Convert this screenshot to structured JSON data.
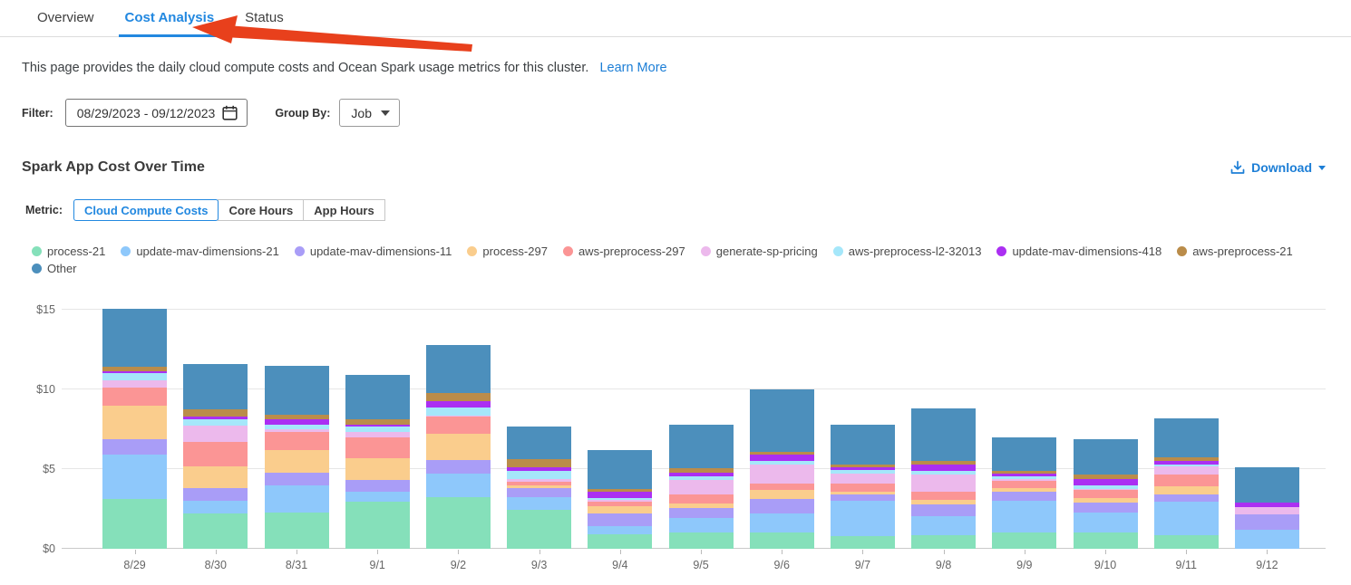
{
  "tabs": [
    {
      "label": "Overview",
      "active": false
    },
    {
      "label": "Cost Analysis",
      "active": true
    },
    {
      "label": "Status",
      "active": false
    }
  ],
  "annotation": {
    "arrow_color": "#E8401C",
    "target": "Cost Analysis tab"
  },
  "description": {
    "text": "This page provides the daily cloud compute costs and Ocean Spark usage metrics for this cluster.",
    "link": "Learn More"
  },
  "filter": {
    "label": "Filter:",
    "date_range": "08/29/2023  -  09/12/2023",
    "group_by_label": "Group By:",
    "group_by_value": "Job"
  },
  "section": {
    "title": "Spark App Cost Over Time",
    "download_label": "Download"
  },
  "metric": {
    "label": "Metric:",
    "options": [
      "Cloud Compute Costs",
      "Core Hours",
      "App Hours"
    ],
    "active": "Cloud Compute Costs"
  },
  "colors": {
    "accent": "#2288E0",
    "link": "#1C7ED6",
    "arrow": "#E8401C"
  },
  "chart_data": {
    "type": "bar",
    "stacked": true,
    "title": "Spark App Cost Over Time",
    "ylabel": "Cloud Compute Costs ($)",
    "ylim": [
      0,
      15
    ],
    "yticks": [
      "$0",
      "$5",
      "$10",
      "$15"
    ],
    "grid": true,
    "legend_position": "top",
    "categories": [
      "8/29",
      "8/30",
      "8/31",
      "9/1",
      "9/2",
      "9/3",
      "9/4",
      "9/5",
      "9/6",
      "9/7",
      "9/8",
      "9/9",
      "9/10",
      "9/11",
      "9/12"
    ],
    "series": [
      {
        "name": "process-21",
        "color": "#85E0BA",
        "values": [
          3.1,
          2.2,
          2.3,
          2.95,
          3.25,
          2.45,
          0.9,
          1.05,
          1.05,
          0.8,
          0.87,
          1.0,
          1.05,
          0.85,
          0.0
        ]
      },
      {
        "name": "update-mav-dimensions-21",
        "color": "#8EC8FB",
        "values": [
          2.8,
          0.8,
          1.7,
          0.65,
          1.45,
          0.8,
          0.55,
          0.9,
          1.15,
          2.2,
          1.2,
          2.0,
          1.2,
          2.1,
          1.2
        ]
      },
      {
        "name": "update-mav-dimensions-11",
        "color": "#A99DF7",
        "values": [
          1.0,
          0.8,
          0.75,
          0.7,
          0.85,
          0.55,
          0.75,
          0.63,
          0.9,
          0.42,
          0.72,
          0.57,
          0.63,
          0.46,
          0.95
        ]
      },
      {
        "name": "process-297",
        "color": "#FACD8D",
        "values": [
          2.1,
          1.35,
          1.45,
          1.4,
          1.65,
          0.2,
          0.45,
          0.27,
          0.6,
          0.15,
          0.28,
          0.25,
          0.28,
          0.53,
          0.0
        ]
      },
      {
        "name": "aws-preprocess-297",
        "color": "#FB9595",
        "values": [
          1.1,
          1.55,
          1.15,
          1.3,
          1.1,
          0.2,
          0.3,
          0.57,
          0.4,
          0.53,
          0.5,
          0.45,
          0.53,
          0.7,
          0.0
        ]
      },
      {
        "name": "generate-sp-pricing",
        "color": "#ECB9EC",
        "values": [
          0.45,
          1.05,
          0.15,
          0.35,
          0.05,
          0.15,
          0.15,
          0.9,
          1.2,
          0.6,
          1.1,
          0.13,
          0.05,
          0.53,
          0.45
        ]
      },
      {
        "name": "aws-preprocess-l2-32013",
        "color": "#A5E7FA",
        "values": [
          0.45,
          0.35,
          0.3,
          0.3,
          0.5,
          0.55,
          0.1,
          0.23,
          0.2,
          0.23,
          0.23,
          0.13,
          0.23,
          0.13,
          0.0
        ]
      },
      {
        "name": "update-mav-dimensions-418",
        "color": "#AB2FF2",
        "values": [
          0.15,
          0.2,
          0.35,
          0.15,
          0.4,
          0.2,
          0.4,
          0.2,
          0.4,
          0.16,
          0.4,
          0.19,
          0.42,
          0.19,
          0.3
        ]
      },
      {
        "name": "aws-preprocess-21",
        "color": "#BA8C4A",
        "values": [
          0.3,
          0.45,
          0.25,
          0.35,
          0.55,
          0.55,
          0.15,
          0.3,
          0.2,
          0.19,
          0.2,
          0.19,
          0.25,
          0.28,
          0.0
        ]
      },
      {
        "name": "Other",
        "color": "#4C8FBC",
        "values": [
          3.6,
          2.85,
          3.1,
          2.75,
          3.0,
          2.05,
          2.45,
          2.75,
          3.9,
          2.5,
          3.3,
          2.1,
          2.25,
          2.4,
          2.2
        ]
      }
    ]
  }
}
